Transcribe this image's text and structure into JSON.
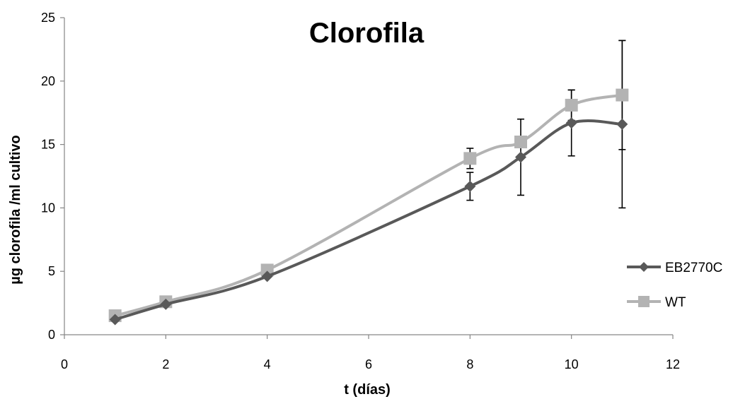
{
  "chart_data": {
    "type": "line",
    "title": "Clorofila",
    "xlabel": "t (días)",
    "ylabel": "µg clorofila /ml cultivo",
    "xlim": [
      0,
      12
    ],
    "ylim": [
      0,
      25
    ],
    "x_ticks": [
      0,
      2,
      4,
      6,
      8,
      10,
      12
    ],
    "y_ticks": [
      0,
      5,
      10,
      15,
      20,
      25
    ],
    "grid": false,
    "legend_position": "right",
    "series": [
      {
        "name": "EB2770C",
        "color": "#595959",
        "marker": "diamond",
        "x": [
          1,
          2,
          4,
          8,
          9,
          10,
          11
        ],
        "values": [
          1.2,
          2.4,
          4.6,
          11.7,
          14.0,
          16.7,
          16.6
        ],
        "error": [
          null,
          null,
          null,
          1.1,
          3.0,
          2.6,
          6.6
        ]
      },
      {
        "name": "WT",
        "color": "#b3b3b3",
        "marker": "square",
        "x": [
          1,
          2,
          4,
          8,
          9,
          10,
          11
        ],
        "values": [
          1.5,
          2.6,
          5.1,
          13.9,
          15.2,
          18.1,
          18.9
        ],
        "error": [
          null,
          null,
          null,
          0.8,
          null,
          1.2,
          4.3
        ]
      }
    ]
  }
}
